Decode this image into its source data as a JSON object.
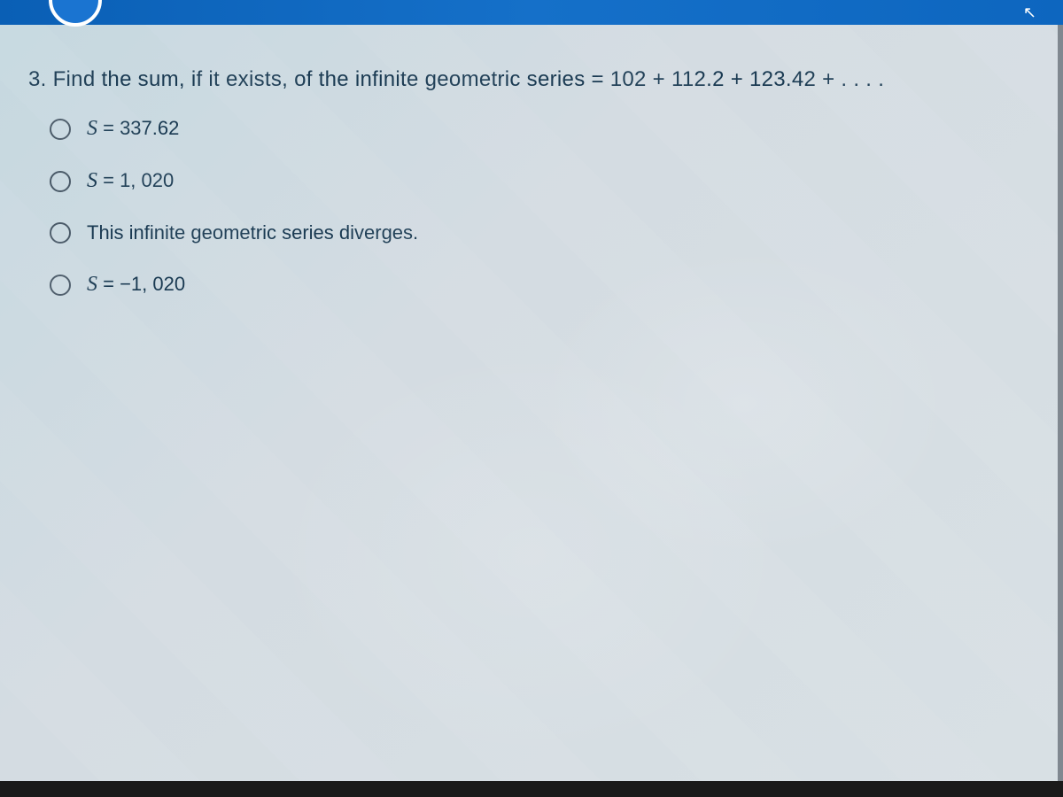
{
  "question": {
    "number": "3.",
    "text": "Find the sum, if it exists, of the infinite geometric series",
    "series": "= 102 + 112.2 + 123.42 + . . . ."
  },
  "options": [
    {
      "prefix": "S",
      "value": " = 337.62",
      "is_math": true
    },
    {
      "prefix": "S",
      "value": " = 1, 020",
      "is_math": true
    },
    {
      "prefix": "",
      "value": "This infinite geometric series diverges.",
      "is_math": false
    },
    {
      "prefix": "S",
      "value": " = −1, 020",
      "is_math": true
    }
  ],
  "colors": {
    "top_bar": "#0d66bf",
    "background": "#d4dce2",
    "text": "#1a3a52",
    "radio_border": "#4a5a68",
    "bottom_border": "#1a1a1a"
  }
}
